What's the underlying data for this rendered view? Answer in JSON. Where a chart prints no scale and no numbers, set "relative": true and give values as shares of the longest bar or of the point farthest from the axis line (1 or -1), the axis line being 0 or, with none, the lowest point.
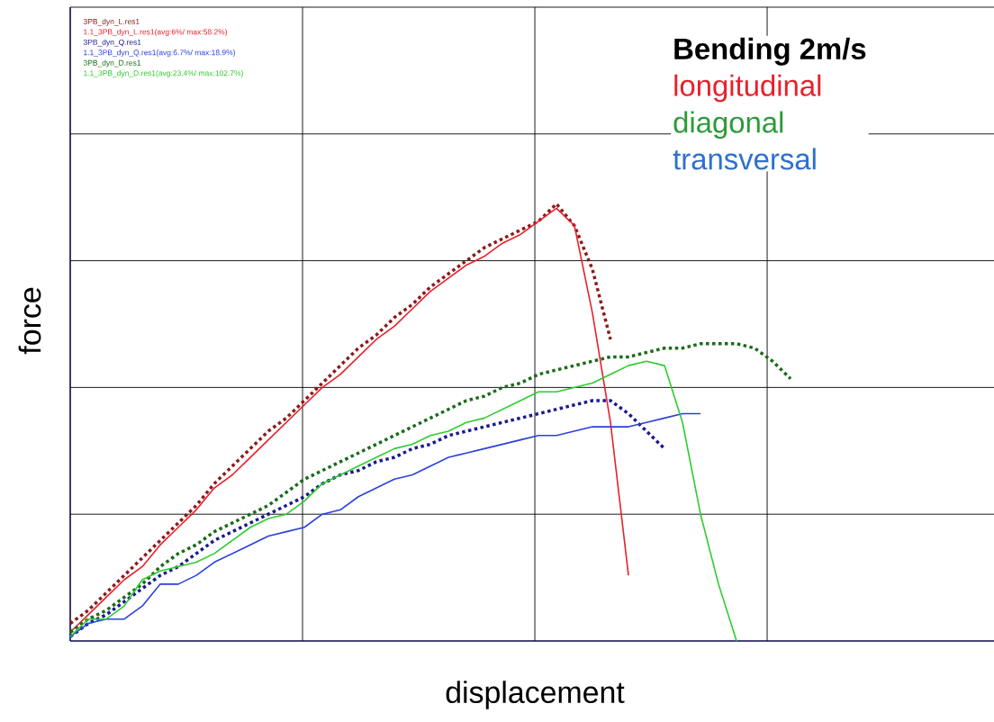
{
  "chart_data": {
    "type": "line",
    "relative": true,
    "title": "Bending 2m/s",
    "xlabel": "displacement",
    "ylabel": "force",
    "grid": true,
    "legend": "top left",
    "annotations": [
      "longitudinal",
      "diagonal",
      "transversal"
    ],
    "categories": [
      null,
      null,
      null,
      null,
      null,
      null,
      null,
      null,
      null,
      null,
      null,
      null,
      null,
      null,
      null,
      null,
      null,
      null,
      null,
      null,
      null,
      null,
      null,
      null,
      null,
      null,
      null,
      null,
      null,
      null,
      null,
      null,
      null,
      null,
      null,
      null,
      null,
      null,
      null,
      null,
      null,
      null,
      null,
      null,
      null,
      null,
      null,
      null,
      null,
      null,
      null,
      null
    ],
    "series": [
      {
        "name": "3PB_dyn_L.res1",
        "color": "#8b1a1a",
        "line_style": "dotted",
        "values": [
          0.04,
          0.07,
          0.11,
          0.15,
          0.19,
          0.23,
          0.27,
          0.31,
          0.36,
          0.4,
          0.44,
          0.48,
          0.51,
          0.55,
          0.59,
          0.63,
          0.67,
          0.7,
          0.74,
          0.77,
          0.81,
          0.84,
          0.87,
          0.9,
          0.92,
          0.94,
          0.96,
          1.0,
          0.95,
          0.85,
          0.69,
          null,
          null,
          null,
          null,
          null,
          null,
          null,
          null,
          null,
          null,
          null,
          null,
          null,
          null,
          null,
          null,
          null,
          null,
          null,
          null,
          null
        ]
      },
      {
        "name": "1.1_3PB_dyn_L.res1(avg:6%/ max:58.2%)",
        "color": "#e8202a",
        "line_style": "solid",
        "values": [
          0.02,
          0.06,
          0.1,
          0.14,
          0.17,
          0.22,
          0.26,
          0.3,
          0.35,
          0.38,
          0.42,
          0.46,
          0.5,
          0.54,
          0.58,
          0.61,
          0.65,
          0.69,
          0.72,
          0.76,
          0.8,
          0.83,
          0.86,
          0.88,
          0.91,
          0.93,
          0.96,
          0.99,
          0.95,
          0.75,
          0.5,
          0.15,
          null,
          null,
          null,
          null,
          null,
          null,
          null,
          null,
          null,
          null,
          null,
          null,
          null,
          null,
          null,
          null,
          null,
          null,
          null,
          null
        ]
      },
      {
        "name": "3PB_dyn_Q.res1",
        "color": "#1a1a8c",
        "line_style": "dotted",
        "values": [
          0.01,
          0.04,
          0.06,
          0.09,
          0.12,
          0.15,
          0.17,
          0.2,
          0.23,
          0.25,
          0.27,
          0.29,
          0.31,
          0.33,
          0.36,
          0.38,
          0.39,
          0.41,
          0.42,
          0.44,
          0.45,
          0.47,
          0.48,
          0.49,
          0.5,
          0.51,
          0.52,
          0.53,
          0.54,
          0.55,
          0.55,
          0.52,
          0.48,
          0.44,
          null,
          null,
          null,
          null,
          null,
          null,
          null,
          null,
          null,
          null,
          null,
          null,
          null,
          null,
          null,
          null,
          null,
          null
        ]
      },
      {
        "name": "1.1_3PB_dyn_Q.res1(avg:6.7%/ max:18.9%)",
        "color": "#2a40e0",
        "line_style": "solid",
        "values": [
          0.01,
          0.04,
          0.05,
          0.05,
          0.08,
          0.13,
          0.13,
          0.15,
          0.18,
          0.2,
          0.22,
          0.24,
          0.25,
          0.26,
          0.29,
          0.3,
          0.33,
          0.35,
          0.37,
          0.38,
          0.4,
          0.42,
          0.43,
          0.44,
          0.45,
          0.46,
          0.47,
          0.47,
          0.48,
          0.49,
          0.49,
          0.49,
          0.5,
          0.51,
          0.52,
          0.52,
          null,
          null,
          null,
          null,
          null,
          null,
          null,
          null,
          null,
          null,
          null,
          null,
          null,
          null,
          null,
          null
        ]
      },
      {
        "name": "3PB_dyn_D.res1",
        "color": "#1a6b1a",
        "line_style": "dotted",
        "values": [
          0.02,
          0.05,
          0.07,
          0.1,
          0.13,
          0.17,
          0.2,
          0.22,
          0.25,
          0.27,
          0.29,
          0.31,
          0.34,
          0.37,
          0.39,
          0.41,
          0.43,
          0.45,
          0.47,
          0.49,
          0.51,
          0.53,
          0.55,
          0.56,
          0.58,
          0.59,
          0.61,
          0.62,
          0.63,
          0.64,
          0.65,
          0.65,
          0.66,
          0.67,
          0.67,
          0.68,
          0.68,
          0.68,
          0.67,
          0.64,
          0.6,
          null,
          null,
          null,
          null,
          null,
          null,
          null,
          null,
          null,
          null,
          null
        ]
      },
      {
        "name": "1.1_3PB_dyn_D.res1(avg:23.4%/ max:102.7%)",
        "color": "#2ecc2e",
        "line_style": "solid",
        "values": [
          0.01,
          0.05,
          0.05,
          0.08,
          0.14,
          0.16,
          0.17,
          0.18,
          0.2,
          0.23,
          0.26,
          0.28,
          0.29,
          0.32,
          0.36,
          0.38,
          0.4,
          0.42,
          0.44,
          0.45,
          0.47,
          0.48,
          0.5,
          0.51,
          0.53,
          0.55,
          0.57,
          0.57,
          0.58,
          0.59,
          0.61,
          0.63,
          0.64,
          0.63,
          0.5,
          0.29,
          0.13,
          0.0,
          null,
          null,
          null,
          null,
          null,
          null,
          null,
          null,
          null,
          null,
          null,
          null,
          null,
          null
        ]
      }
    ]
  }
}
